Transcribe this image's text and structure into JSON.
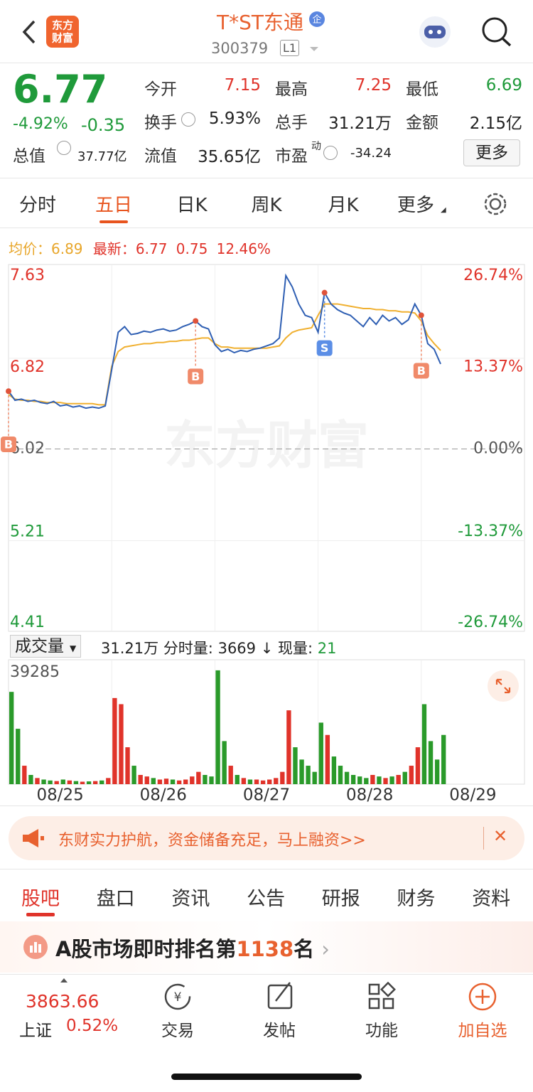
{
  "header": {
    "logo": [
      "东方",
      "财富"
    ],
    "title": "T*ST东通",
    "badge": "企",
    "code": "300379",
    "level": "L1"
  },
  "quote": {
    "price": "6.77",
    "change_pct": "-4.92%",
    "change": "-0.35",
    "total_value_label": "总值",
    "total_value": "37.77亿",
    "fields": [
      {
        "label": "今开",
        "value": "7.15",
        "color": "#e0332a"
      },
      {
        "label": "最高",
        "value": "7.25",
        "color": "#e0332a"
      },
      {
        "label": "最低",
        "value": "6.69",
        "color": "#1f9a3a"
      },
      {
        "label": "换手",
        "value": "5.93%",
        "info": true
      },
      {
        "label": "总手",
        "value": "31.21万"
      },
      {
        "label": "金额",
        "value": "2.15亿"
      },
      {
        "label": "流值",
        "value": "35.65亿"
      },
      {
        "label": "市盈",
        "sup": "动",
        "value": "-34.24",
        "info": true
      }
    ],
    "more": "更多"
  },
  "tabs": {
    "items": [
      "分时",
      "五日",
      "日K",
      "周K",
      "月K",
      "更多"
    ],
    "active": 1
  },
  "chart_info": {
    "avg_label": "均价：",
    "avg": "6.89",
    "latest_label": "最新：",
    "latest": "6.77",
    "change": "0.75",
    "change_pct": "12.46%"
  },
  "watermark": "东方财富",
  "chart_data": [
    {
      "type": "line",
      "xlim": [
        0,
        80
      ],
      "xticks": [
        {
          "value": 8,
          "label": "08/25"
        },
        {
          "value": 24,
          "label": "08/26"
        },
        {
          "value": 40,
          "label": "08/27"
        },
        {
          "value": 56,
          "label": "08/28"
        },
        {
          "value": 72,
          "label": "08/29"
        }
      ],
      "xgrid": [
        16,
        32,
        48,
        64
      ],
      "ylim": [
        4.41,
        7.63
      ],
      "yticks": [
        4.41,
        5.21,
        6.02,
        6.82,
        7.63
      ],
      "y2lim": [
        -26.74,
        26.74
      ],
      "y2ticks": [
        {
          "value": -26.74,
          "label": "-26.74%"
        },
        {
          "value": -13.37,
          "label": "-13.37%"
        },
        {
          "value": 0,
          "label": "0.00%"
        },
        {
          "value": 13.37,
          "label": "13.37%"
        },
        {
          "value": 26.74,
          "label": "26.74%"
        }
      ],
      "grid": true,
      "x": [
        0,
        1,
        2,
        3,
        4,
        5,
        6,
        7,
        8,
        9,
        10,
        11,
        12,
        13,
        14,
        15,
        16,
        17,
        18,
        19,
        20,
        21,
        22,
        23,
        24,
        25,
        26,
        27,
        28,
        29,
        30,
        31,
        32,
        33,
        34,
        35,
        36,
        37,
        38,
        39,
        40,
        41,
        42,
        43,
        44,
        45,
        46,
        47,
        48,
        49,
        50,
        51,
        52,
        53,
        54,
        55,
        56,
        57,
        58,
        59,
        60,
        61,
        62,
        63,
        64,
        65,
        66,
        67
      ],
      "series": [
        {
          "color": "#2f5fb3",
          "values": [
            6.53,
            6.45,
            6.46,
            6.44,
            6.45,
            6.43,
            6.42,
            6.44,
            6.4,
            6.41,
            6.39,
            6.4,
            6.38,
            6.39,
            6.38,
            6.4,
            6.72,
            7.05,
            7.1,
            7.03,
            7.04,
            7.06,
            7.05,
            7.07,
            7.08,
            7.06,
            7.07,
            7.1,
            7.12,
            7.15,
            7.1,
            7.08,
            6.94,
            6.88,
            6.9,
            6.87,
            6.89,
            6.88,
            6.9,
            6.91,
            6.93,
            6.95,
            7.0,
            7.55,
            7.45,
            7.3,
            7.2,
            7.18,
            7.05,
            7.4,
            7.3,
            7.25,
            7.22,
            7.2,
            7.15,
            7.1,
            7.18,
            7.12,
            7.2,
            7.15,
            7.18,
            7.12,
            7.16,
            7.3,
            7.2,
            6.95,
            6.9,
            6.77
          ]
        },
        {
          "color": "#f0b030",
          "values": [
            6.5,
            6.46,
            6.45,
            6.45,
            6.44,
            6.44,
            6.43,
            6.43,
            6.43,
            6.42,
            6.42,
            6.42,
            6.42,
            6.42,
            6.41,
            6.41,
            6.75,
            6.88,
            6.92,
            6.93,
            6.94,
            6.95,
            6.95,
            6.96,
            6.96,
            6.97,
            6.97,
            6.98,
            6.98,
            6.99,
            7.0,
            7.0,
            6.95,
            6.92,
            6.92,
            6.91,
            6.91,
            6.91,
            6.91,
            6.91,
            6.91,
            6.92,
            6.93,
            7.0,
            7.05,
            7.07,
            7.08,
            7.09,
            7.2,
            7.3,
            7.3,
            7.3,
            7.29,
            7.28,
            7.27,
            7.26,
            7.26,
            7.25,
            7.25,
            7.24,
            7.24,
            7.23,
            7.23,
            7.22,
            7.15,
            7.02,
            6.95,
            6.89
          ]
        }
      ],
      "markers": [
        {
          "label": "B",
          "index": 0,
          "color": "#f08a6a"
        },
        {
          "label": "B",
          "index": 29,
          "color": "#f08a6a"
        },
        {
          "label": "S",
          "index": 49,
          "color": "#5b8ee6"
        },
        {
          "label": "B",
          "index": 64,
          "color": "#f08a6a"
        }
      ]
    },
    {
      "type": "bar",
      "ylim": [
        0,
        39285
      ],
      "yticks": [
        39285
      ],
      "up_color": "#e0332a",
      "down_color": "#2a9a2a",
      "values": [
        30000,
        18000,
        6000,
        3000,
        2000,
        1500,
        1200,
        1000,
        1500,
        1200,
        1000,
        800,
        900,
        1000,
        1200,
        2000,
        28000,
        26000,
        12000,
        6000,
        3000,
        2500,
        2000,
        1500,
        1800,
        1500,
        1200,
        1500,
        2500,
        4000,
        3000,
        2500,
        37000,
        14000,
        6000,
        3000,
        2000,
        1500,
        1500,
        1200,
        1500,
        2000,
        4000,
        24000,
        12000,
        8000,
        6000,
        4000,
        20000,
        16000,
        9000,
        6000,
        4000,
        3000,
        2500,
        2000,
        3000,
        2500,
        2000,
        2500,
        3000,
        4000,
        6000,
        12000,
        26000,
        14000,
        8000,
        16000
      ]
    }
  ],
  "volume_header": {
    "label": "成交量",
    "total": "31.21万",
    "tick_label": "分时量:",
    "tick": "3669",
    "arrow": "↓",
    "now_label": "现量:",
    "now": "21"
  },
  "banner": {
    "text": "东财实力护航，资金储备充足，马上融资>>"
  },
  "section_tabs": {
    "items": [
      "股吧",
      "盘口",
      "资讯",
      "公告",
      "研报",
      "财务",
      "资料"
    ],
    "active": 0
  },
  "ranking": {
    "prefix": "A股市场即时排名第",
    "rank": "1138",
    "suffix": "名"
  },
  "bottom_nav": {
    "index_value": "3863.66",
    "index_name": "上证",
    "index_change": "0.52%",
    "items": [
      "交易",
      "发帖",
      "功能",
      "加自选"
    ]
  }
}
